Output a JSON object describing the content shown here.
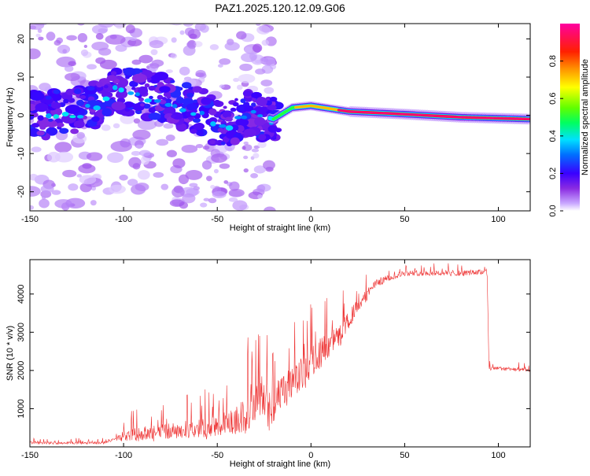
{
  "title": "PAZ1.2025.120.12.09.G06",
  "chart_data": [
    {
      "type": "heatmap",
      "xlabel": "Height of straight line (km)",
      "ylabel": "Frequency (Hz)",
      "xlim": [
        -150,
        117
      ],
      "ylim": [
        -25,
        24
      ],
      "xticks": [
        -150,
        -100,
        -50,
        0,
        50,
        100
      ],
      "yticks": [
        -20,
        -10,
        0,
        10,
        20
      ],
      "colorbar": {
        "label": "Normalized spectral amplitude",
        "range": [
          0,
          1
        ],
        "ticks": [
          0.0,
          0.2,
          0.4,
          0.6,
          0.8
        ],
        "tick_labels": [
          "0.0",
          "0.2",
          "0.4",
          "0.6",
          "0.8"
        ]
      },
      "ridge": [
        {
          "x": -150,
          "f": 0
        },
        {
          "x": -120,
          "f": 1
        },
        {
          "x": -105,
          "f": 7
        },
        {
          "x": -85,
          "f": 5
        },
        {
          "x": -70,
          "f": 3
        },
        {
          "x": -55,
          "f": 0
        },
        {
          "x": -45,
          "f": -4
        },
        {
          "x": -35,
          "f": 1
        },
        {
          "x": -20,
          "f": -1
        },
        {
          "x": -10,
          "f": 2
        },
        {
          "x": 0,
          "f": 2.5
        },
        {
          "x": 20,
          "f": 1
        },
        {
          "x": 50,
          "f": 0.3
        },
        {
          "x": 80,
          "f": -0.5
        },
        {
          "x": 117,
          "f": -1
        }
      ],
      "peak_amplitude_region_km": [
        20,
        117
      ]
    },
    {
      "type": "line",
      "xlabel": "Height of straight line (km)",
      "ylabel": "SNR (10 * v/v)",
      "xlim": [
        -150,
        117
      ],
      "ylim": [
        0,
        4900
      ],
      "xticks": [
        -150,
        -100,
        -50,
        0,
        50,
        100
      ],
      "yticks": [
        1000,
        2000,
        3000,
        4000
      ],
      "series_color": "#ee3333",
      "envelope": [
        {
          "x": -150,
          "y": 100
        },
        {
          "x": -110,
          "y": 110
        },
        {
          "x": -100,
          "y": 300
        },
        {
          "x": -75,
          "y": 420
        },
        {
          "x": -55,
          "y": 500
        },
        {
          "x": -45,
          "y": 600
        },
        {
          "x": -35,
          "y": 800
        },
        {
          "x": -28,
          "y": 1500
        },
        {
          "x": -22,
          "y": 1000
        },
        {
          "x": -15,
          "y": 1400
        },
        {
          "x": -5,
          "y": 1900
        },
        {
          "x": 5,
          "y": 2500
        },
        {
          "x": 15,
          "y": 2900
        },
        {
          "x": 25,
          "y": 3700
        },
        {
          "x": 35,
          "y": 4300
        },
        {
          "x": 50,
          "y": 4550
        },
        {
          "x": 70,
          "y": 4550
        },
        {
          "x": 88,
          "y": 4560
        },
        {
          "x": 94,
          "y": 4600
        },
        {
          "x": 95,
          "y": 2050
        },
        {
          "x": 105,
          "y": 2050
        },
        {
          "x": 117,
          "y": 2000
        }
      ],
      "noise": [
        {
          "x": -150,
          "a": 80
        },
        {
          "x": -105,
          "a": 80
        },
        {
          "x": -100,
          "a": 400
        },
        {
          "x": -60,
          "a": 600
        },
        {
          "x": -40,
          "a": 900
        },
        {
          "x": -30,
          "a": 1600
        },
        {
          "x": -20,
          "a": 1300
        },
        {
          "x": -5,
          "a": 1100
        },
        {
          "x": 15,
          "a": 700
        },
        {
          "x": 30,
          "a": 350
        },
        {
          "x": 45,
          "a": 180
        },
        {
          "x": 94,
          "a": 180
        },
        {
          "x": 96,
          "a": 120
        },
        {
          "x": 117,
          "a": 120
        }
      ]
    }
  ]
}
